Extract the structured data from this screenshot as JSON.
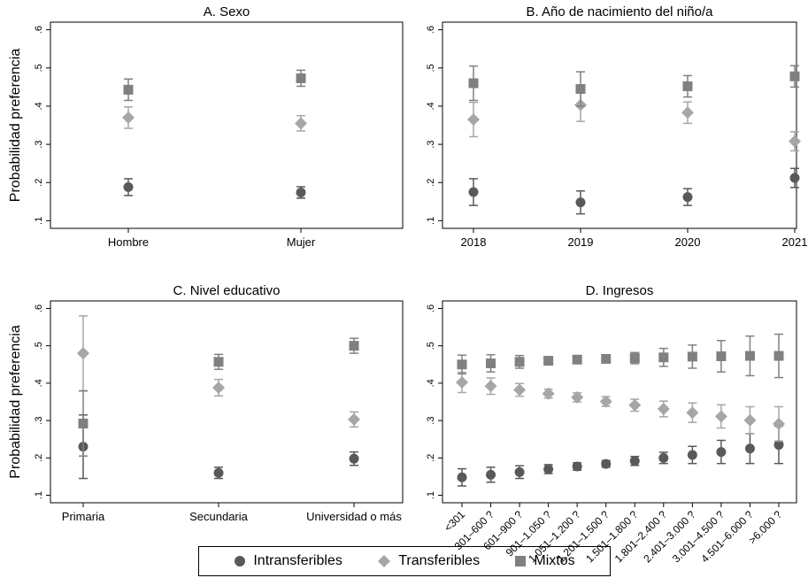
{
  "legend": {
    "items": [
      {
        "label": "Intransferibles",
        "marker": "circle",
        "color": "#595959"
      },
      {
        "label": "Transferibles",
        "marker": "diamond",
        "color": "#a6a6a6"
      },
      {
        "label": "Mixtos",
        "marker": "square",
        "color": "#808080"
      }
    ]
  },
  "chart_data": [
    {
      "type": "scatter",
      "title": "A. Sexo",
      "ylabel": "Probabilidad preferencia",
      "ylim": [
        0.08,
        0.62
      ],
      "yticks": [
        ".1",
        ".2",
        ".3",
        ".4",
        ".5",
        ".6"
      ],
      "categories": [
        "Hombre",
        "Mujer"
      ],
      "series": [
        {
          "name": "Intransferibles",
          "values": [
            0.188,
            0.174
          ],
          "ci_low": [
            0.166,
            0.159
          ],
          "ci_high": [
            0.21,
            0.189
          ]
        },
        {
          "name": "Transferibles",
          "values": [
            0.37,
            0.355
          ],
          "ci_low": [
            0.342,
            0.335
          ],
          "ci_high": [
            0.398,
            0.375
          ]
        },
        {
          "name": "Mixtos",
          "values": [
            0.443,
            0.473
          ],
          "ci_low": [
            0.415,
            0.452
          ],
          "ci_high": [
            0.471,
            0.494
          ]
        }
      ]
    },
    {
      "type": "scatter",
      "title": "B. Año de nacimiento del niño/a",
      "ylabel": "",
      "ylim": [
        0.08,
        0.62
      ],
      "yticks": [
        ".1",
        ".2",
        ".3",
        ".4",
        ".5",
        ".6"
      ],
      "categories": [
        "2018",
        "2019",
        "2020",
        "2021"
      ],
      "series": [
        {
          "name": "Intransferibles",
          "values": [
            0.175,
            0.148,
            0.162,
            0.212
          ],
          "ci_low": [
            0.14,
            0.118,
            0.14,
            0.187
          ],
          "ci_high": [
            0.21,
            0.178,
            0.184,
            0.237
          ]
        },
        {
          "name": "Transferibles",
          "values": [
            0.365,
            0.403,
            0.383,
            0.308
          ],
          "ci_low": [
            0.32,
            0.36,
            0.355,
            0.283
          ],
          "ci_high": [
            0.41,
            0.446,
            0.411,
            0.333
          ]
        },
        {
          "name": "Mixtos",
          "values": [
            0.46,
            0.445,
            0.452,
            0.478
          ],
          "ci_low": [
            0.415,
            0.4,
            0.424,
            0.45
          ],
          "ci_high": [
            0.505,
            0.49,
            0.48,
            0.506
          ]
        }
      ]
    },
    {
      "type": "scatter",
      "title": "C. Nivel educativo",
      "ylabel": "Probabilidad preferencia",
      "ylim": [
        0.08,
        0.62
      ],
      "yticks": [
        ".1",
        ".2",
        ".3",
        ".4",
        ".5",
        ".6"
      ],
      "categories": [
        "Primaria",
        "Secundaria",
        "Universidad o más"
      ],
      "series": [
        {
          "name": "Intransferibles",
          "values": [
            0.23,
            0.16,
            0.198
          ],
          "ci_low": [
            0.145,
            0.145,
            0.18
          ],
          "ci_high": [
            0.315,
            0.175,
            0.216
          ]
        },
        {
          "name": "Transferibles",
          "values": [
            0.48,
            0.388,
            0.303
          ],
          "ci_low": [
            0.38,
            0.366,
            0.283
          ],
          "ci_high": [
            0.58,
            0.41,
            0.323
          ]
        },
        {
          "name": "Mixtos",
          "values": [
            0.292,
            0.457,
            0.5
          ],
          "ci_low": [
            0.205,
            0.437,
            0.48
          ],
          "ci_high": [
            0.379,
            0.477,
            0.52
          ]
        }
      ]
    },
    {
      "type": "scatter",
      "title": "D. Ingresos",
      "ylabel": "",
      "ylim": [
        0.08,
        0.62
      ],
      "yticks": [
        ".1",
        ".2",
        ".3",
        ".4",
        ".5",
        ".6"
      ],
      "categories": [
        "<301",
        "301–600 ?",
        "601–900 ?",
        "901–1.050 ?",
        "1.051–1.200 ?",
        "1.201–1.500 ?",
        "1.501–1.800 ?",
        "1.801–2.400 ?",
        "2.401–3.000 ?",
        "3.001–4.500 ?",
        "4.501–6.000 ?",
        ">6.000 ?"
      ],
      "series": [
        {
          "name": "Intransferibles",
          "values": [
            0.148,
            0.155,
            0.162,
            0.17,
            0.177,
            0.184,
            0.192,
            0.2,
            0.208,
            0.216,
            0.225,
            0.235
          ],
          "ci_low": [
            0.125,
            0.135,
            0.145,
            0.158,
            0.167,
            0.175,
            0.18,
            0.185,
            0.185,
            0.185,
            0.185,
            0.185
          ],
          "ci_high": [
            0.171,
            0.175,
            0.179,
            0.182,
            0.187,
            0.193,
            0.204,
            0.215,
            0.231,
            0.247,
            0.265,
            0.285
          ]
        },
        {
          "name": "Transferibles",
          "values": [
            0.402,
            0.392,
            0.382,
            0.372,
            0.362,
            0.351,
            0.341,
            0.331,
            0.321,
            0.311,
            0.301,
            0.291
          ],
          "ci_low": [
            0.375,
            0.37,
            0.365,
            0.36,
            0.35,
            0.338,
            0.325,
            0.31,
            0.295,
            0.28,
            0.265,
            0.245
          ],
          "ci_high": [
            0.429,
            0.414,
            0.399,
            0.384,
            0.374,
            0.364,
            0.357,
            0.352,
            0.347,
            0.342,
            0.337,
            0.337
          ]
        },
        {
          "name": "Mixtos",
          "values": [
            0.45,
            0.453,
            0.457,
            0.46,
            0.463,
            0.465,
            0.467,
            0.469,
            0.471,
            0.472,
            0.473,
            0.473
          ],
          "ci_low": [
            0.425,
            0.43,
            0.44,
            0.45,
            0.455,
            0.455,
            0.452,
            0.445,
            0.44,
            0.43,
            0.42,
            0.415
          ],
          "ci_high": [
            0.475,
            0.476,
            0.474,
            0.47,
            0.471,
            0.475,
            0.482,
            0.493,
            0.502,
            0.514,
            0.526,
            0.531
          ]
        }
      ]
    }
  ]
}
